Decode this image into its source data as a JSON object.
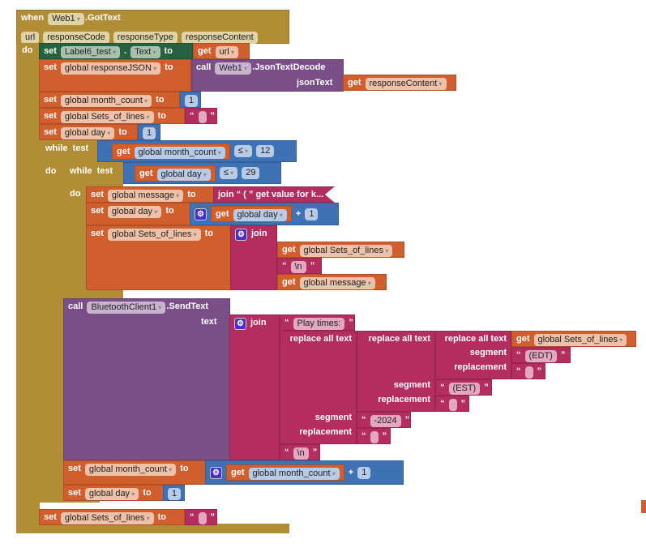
{
  "event": {
    "when": "when",
    "component": "Web1",
    "event": ".GotText",
    "do": "do",
    "params": [
      "url",
      "responseCode",
      "responseType",
      "responseContent"
    ]
  },
  "kw": {
    "set": "set",
    "to": "to",
    "get": "get",
    "call": "call",
    "while": "while",
    "test": "test",
    "do": "do",
    "join": "join",
    "plus": "+",
    "le": "≤",
    "dot": ".",
    "text_label": "text",
    "replace_all": "replace all text",
    "segment": "segment",
    "replacement": "replacement",
    "quote": "“ ”"
  },
  "s1": {
    "component": "Label6_test",
    "property": "Text",
    "var": "url"
  },
  "s2": {
    "var": "global responseJSON",
    "component": "Web1",
    "method": ".JsonTextDecode",
    "arg": "jsonText",
    "get": "responseContent"
  },
  "s3": {
    "var": "global month_count",
    "value": "1"
  },
  "s4": {
    "var": "global Sets_of_lines",
    "value": ""
  },
  "s5": {
    "var": "global day",
    "value": "1"
  },
  "w1": {
    "var": "global month_count",
    "op": "≤",
    "value": "12"
  },
  "w2": {
    "var": "global day",
    "op": "≤",
    "value": "29"
  },
  "d1": {
    "var": "global message",
    "join_text": "join “ ( ” get value for k..."
  },
  "d2": {
    "var": "global day",
    "get": "global day",
    "value": "1"
  },
  "d3": {
    "var": "global Sets_of_lines",
    "get1": "global Sets_of_lines",
    "nl": "\\n",
    "get2": "global message"
  },
  "bt": {
    "component": "BluetoothClient1",
    "method": ".SendText",
    "play": "Play times:",
    "get": "global Sets_of_lines",
    "seg1": "(EDT)",
    "seg2": "(EST)",
    "seg3": "-2024",
    "nl": "\\n"
  },
  "e1": {
    "var": "global month_count",
    "get": "global month_count",
    "value": "1"
  },
  "e2": {
    "var": "global day",
    "value": "1"
  },
  "e3": {
    "var": "global Sets_of_lines"
  }
}
